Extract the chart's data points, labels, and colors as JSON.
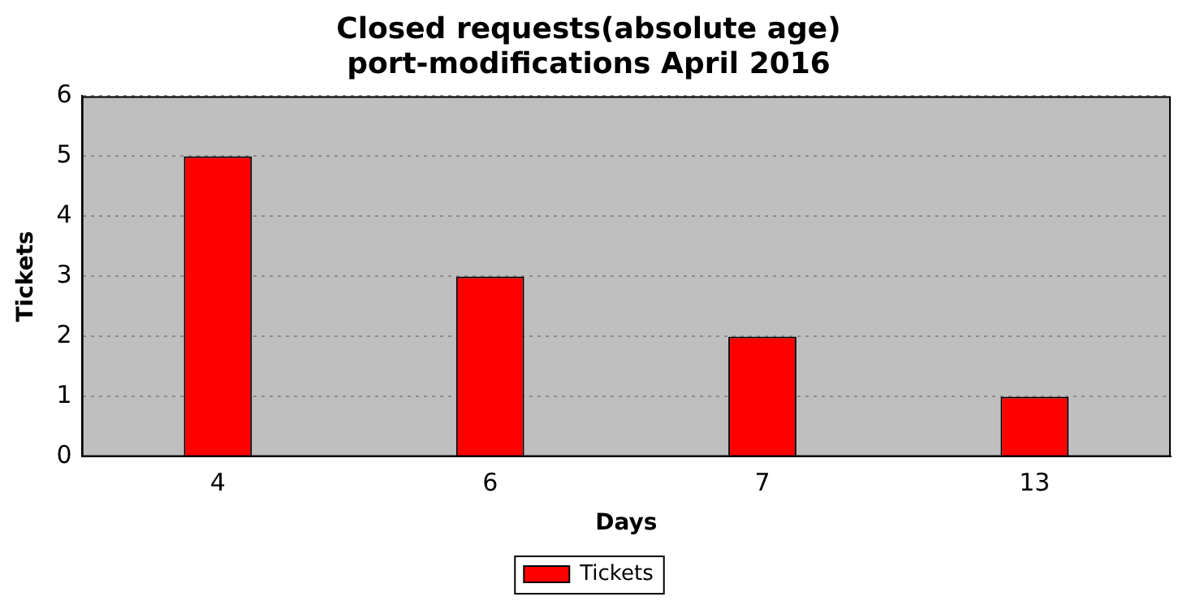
{
  "chart_data": {
    "type": "bar",
    "title": "Closed requests(absolute age)\nport-modifications April 2016",
    "xlabel": "Days",
    "ylabel": "Tickets",
    "categories": [
      "4",
      "6",
      "7",
      "13"
    ],
    "series": [
      {
        "name": "Tickets",
        "color": "#ff0000",
        "values": [
          5,
          3,
          2,
          1
        ]
      }
    ],
    "ylim": [
      0,
      6
    ],
    "yticks": [
      0,
      1,
      2,
      3,
      4,
      5,
      6
    ],
    "grid": "y",
    "legend": "bottom"
  }
}
